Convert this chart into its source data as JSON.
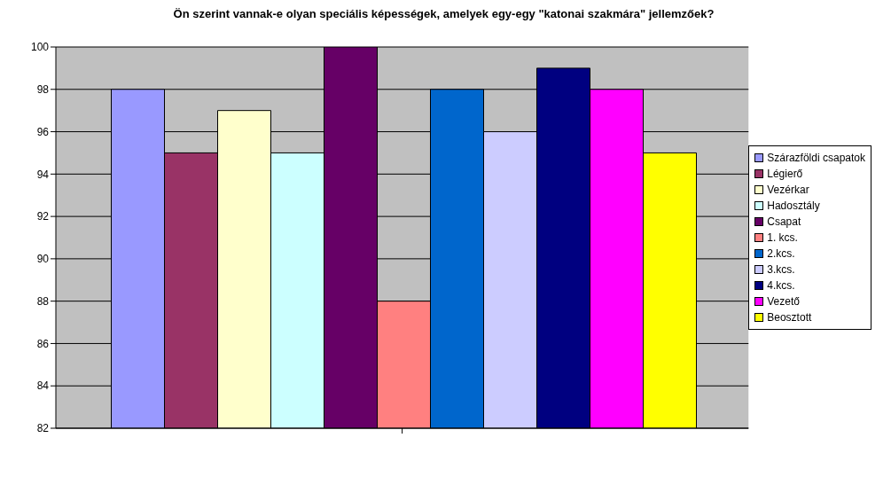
{
  "chart_data": {
    "type": "bar",
    "title": "Ön szerint vannak-e olyan speciális képességek, amelyek egy-egy \"katonai szakmára\" jellemzőek?",
    "categories": [
      null
    ],
    "series": [
      {
        "name": "Szárazföldi csapatok",
        "color": "#9999ff",
        "values": [
          98
        ]
      },
      {
        "name": "Légierő",
        "color": "#993366",
        "values": [
          95
        ]
      },
      {
        "name": "Vezérkar",
        "color": "#ffffcc",
        "values": [
          97
        ]
      },
      {
        "name": "Hadosztály",
        "color": "#ccffff",
        "values": [
          95
        ]
      },
      {
        "name": "Csapat",
        "color": "#660066",
        "values": [
          100
        ]
      },
      {
        "name": "1. kcs.",
        "color": "#ff8080",
        "values": [
          88
        ]
      },
      {
        "name": "2.kcs.",
        "color": "#0066cc",
        "values": [
          98
        ]
      },
      {
        "name": "3.kcs.",
        "color": "#ccccff",
        "values": [
          96
        ]
      },
      {
        "name": "4.kcs.",
        "color": "#000080",
        "values": [
          99
        ]
      },
      {
        "name": "Vezető",
        "color": "#ff00ff",
        "values": [
          98
        ]
      },
      {
        "name": "Beosztott",
        "color": "#ffff00",
        "values": [
          95
        ]
      }
    ],
    "ylim": [
      82,
      100
    ],
    "yticks": [
      82,
      84,
      86,
      88,
      90,
      92,
      94,
      96,
      98,
      100
    ],
    "grid": "y",
    "legend": "right"
  }
}
